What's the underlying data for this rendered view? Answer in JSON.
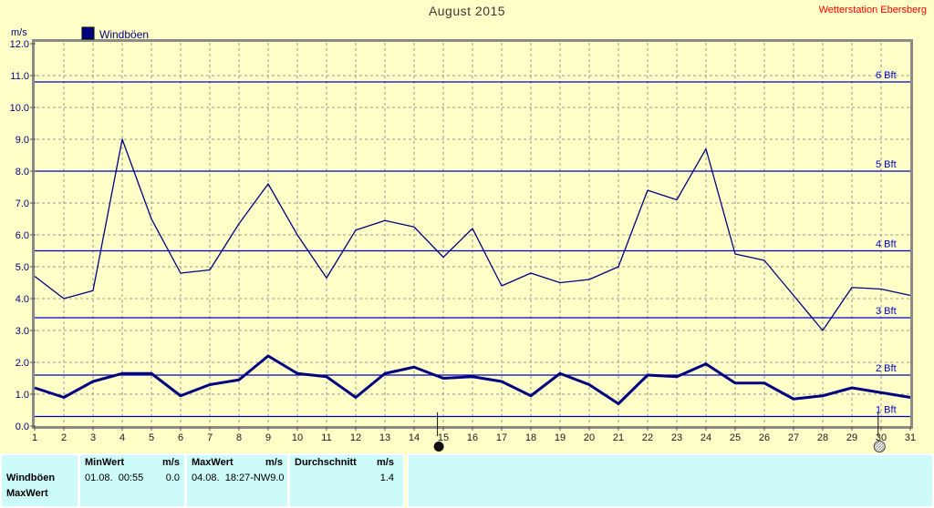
{
  "header": {
    "title": "August 2015",
    "station": "Wetterstation Ebersberg"
  },
  "legend": {
    "label": "Windböen"
  },
  "axis": {
    "unit_label": "m/s"
  },
  "chart_data": {
    "type": "line",
    "title": "August 2015",
    "ylabel": "m/s",
    "ylim": [
      0.0,
      12.0
    ],
    "ytick_step": 1.0,
    "grid": true,
    "legend_position": "top-left",
    "days": [
      1,
      2,
      3,
      4,
      5,
      6,
      7,
      8,
      9,
      10,
      11,
      12,
      13,
      14,
      15,
      16,
      17,
      18,
      19,
      20,
      21,
      22,
      23,
      24,
      25,
      26,
      27,
      28,
      29,
      30,
      31
    ],
    "series": [
      {
        "name": "windboeen-daily-max",
        "style": "thin",
        "values": [
          4.7,
          4.0,
          4.25,
          9.0,
          6.5,
          4.8,
          4.9,
          6.35,
          7.6,
          6.0,
          4.65,
          6.15,
          6.45,
          6.25,
          5.3,
          6.2,
          4.4,
          4.8,
          4.5,
          4.6,
          5.0,
          7.4,
          7.1,
          8.7,
          5.4,
          5.2,
          4.1,
          3.0,
          4.35,
          4.3,
          4.1
        ]
      },
      {
        "name": "windboeen-daily-mean",
        "style": "thick",
        "values": [
          1.2,
          0.9,
          1.4,
          1.65,
          1.65,
          0.95,
          1.3,
          1.45,
          2.2,
          1.65,
          1.55,
          0.9,
          1.65,
          1.85,
          1.5,
          1.55,
          1.4,
          0.95,
          1.65,
          1.3,
          0.7,
          1.6,
          1.55,
          1.95,
          1.35,
          1.35,
          0.85,
          0.95,
          1.2,
          1.05,
          0.9
        ]
      }
    ],
    "beaufort_lines": [
      {
        "label": "1 Bft",
        "value": 0.3
      },
      {
        "label": "2 Bft",
        "value": 1.6
      },
      {
        "label": "3 Bft",
        "value": 3.4
      },
      {
        "label": "4 Bft",
        "value": 5.5
      },
      {
        "label": "5 Bft",
        "value": 8.0
      },
      {
        "label": "6 Bft",
        "value": 10.8
      }
    ],
    "moon_markers": [
      {
        "type": "new-moon",
        "day": 14.8
      },
      {
        "type": "full-moon",
        "day": 29.9
      }
    ]
  },
  "footer_table": {
    "row_label": "Windböen",
    "row2_label": "MaxWert",
    "columns": [
      {
        "header": "MinWert",
        "unit": "m/s",
        "value_text": "01.08.  00:55",
        "value_num": "0.0"
      },
      {
        "header": "MaxWert",
        "unit": "m/s",
        "value_text": "04.08.  18:27-NW",
        "value_num": "9.0"
      },
      {
        "header": "Durchschnitt",
        "unit": "m/s",
        "value_text": "",
        "value_num": "1.4"
      }
    ]
  },
  "colors": {
    "background": "#FFFFC8",
    "table_background": "#CDFBF9",
    "series": "#000080",
    "beaufort": "#0000CC",
    "grid": "#9A9A94",
    "border": "#8A8A86",
    "title": "#3A3A32",
    "station": "#FF0000",
    "axis_label": "#000080",
    "day_label": "#1A1A1A"
  }
}
